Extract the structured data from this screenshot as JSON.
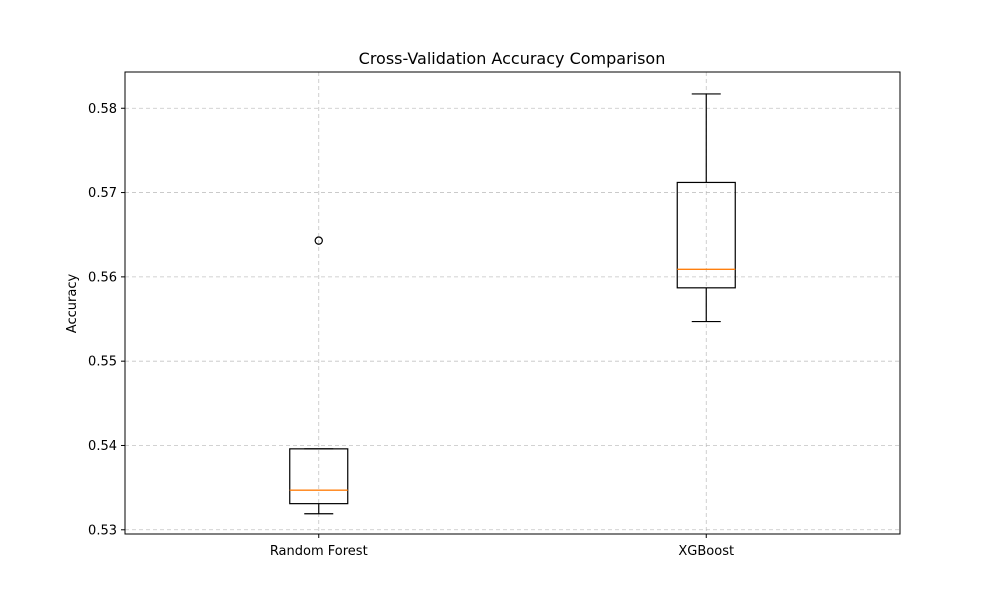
{
  "chart_data": {
    "type": "box",
    "title": "Cross-Validation Accuracy Comparison",
    "xlabel": "",
    "ylabel": "Accuracy",
    "ylim": [
      0.5295,
      0.5843
    ],
    "y_ticks": [
      0.53,
      0.54,
      0.55,
      0.56,
      0.57,
      0.58
    ],
    "y_tick_labels": [
      "0.53",
      "0.54",
      "0.55",
      "0.56",
      "0.57",
      "0.58"
    ],
    "grid": true,
    "categories": [
      "Random Forest",
      "XGBoost"
    ],
    "boxes": [
      {
        "category": "Random Forest",
        "whisker_low": 0.5319,
        "q1": 0.5331,
        "median": 0.5347,
        "q3": 0.5396,
        "whisker_high": 0.5396,
        "outliers": [
          0.5643
        ]
      },
      {
        "category": "XGBoost",
        "whisker_low": 0.5547,
        "q1": 0.5587,
        "median": 0.5609,
        "q3": 0.5712,
        "whisker_high": 0.5817,
        "outliers": []
      }
    ],
    "colors": {
      "box": "#000000",
      "median": "#ff7f0e",
      "grid": "#b0b0b0"
    }
  }
}
